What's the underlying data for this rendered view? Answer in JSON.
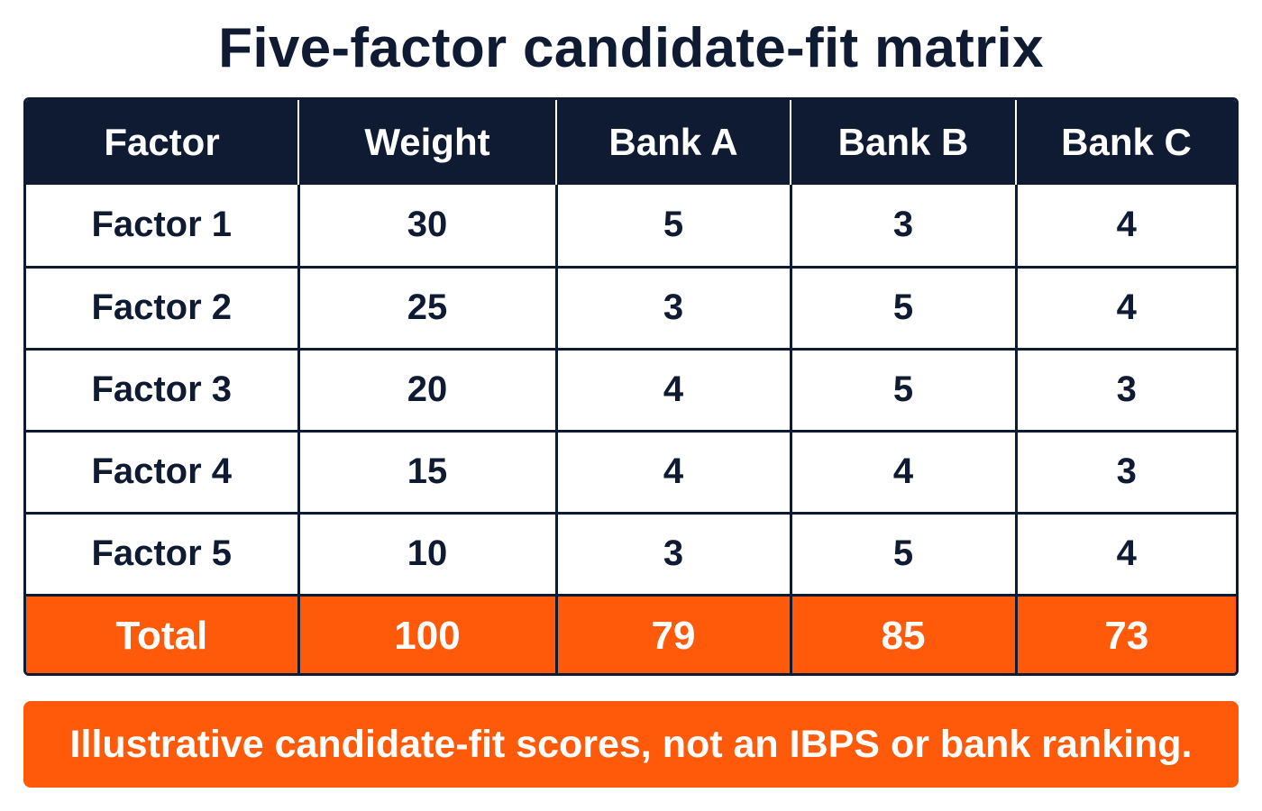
{
  "chart_data": {
    "type": "table",
    "title": "Five-factor candidate-fit matrix",
    "columns": [
      "Factor",
      "Weight",
      "Bank A",
      "Bank B",
      "Bank C"
    ],
    "rows": [
      [
        "Factor 1",
        "30",
        "5",
        "3",
        "4"
      ],
      [
        "Factor 2",
        "25",
        "3",
        "5",
        "4"
      ],
      [
        "Factor 3",
        "20",
        "4",
        "5",
        "3"
      ],
      [
        "Factor 4",
        "15",
        "4",
        "4",
        "3"
      ],
      [
        "Factor 5",
        "10",
        "3",
        "5",
        "4"
      ]
    ],
    "total_row": [
      "Total",
      "100",
      "79",
      "85",
      "73"
    ],
    "note": "Illustrative candidate-fit scores, not an IBPS or bank ranking."
  },
  "colors": {
    "header_bg": "#0f1a33",
    "accent": "#ff5a0a",
    "text": "#0f1a33",
    "text_on_dark": "#ffffff"
  }
}
